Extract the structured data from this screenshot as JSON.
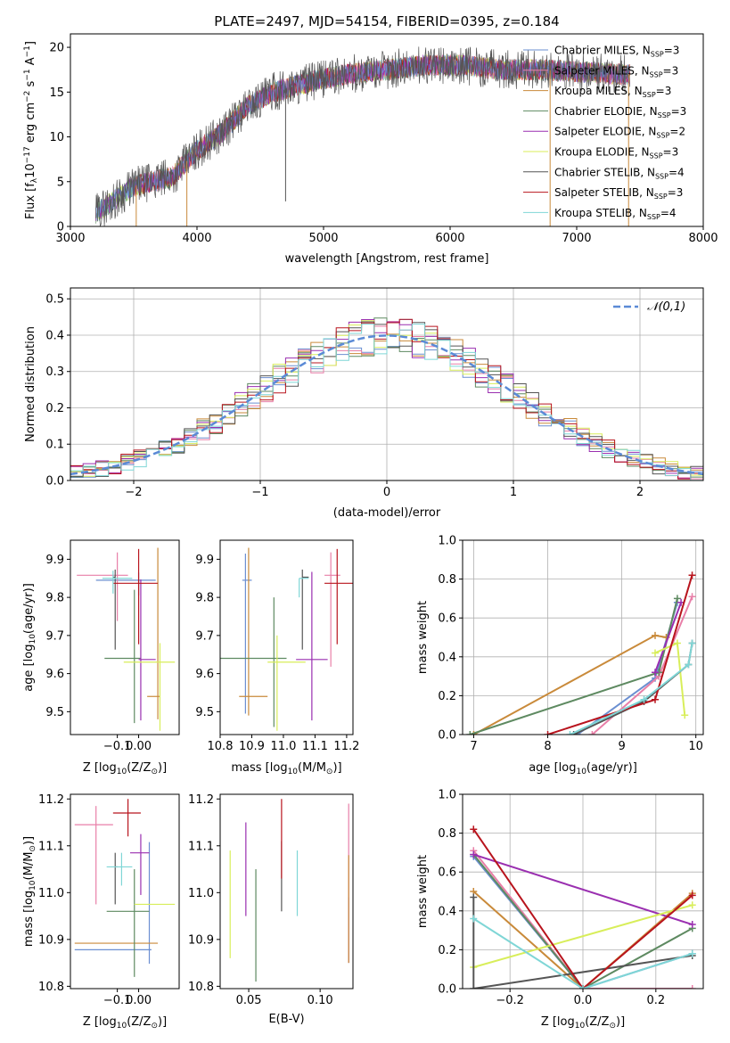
{
  "figure": {
    "title": "PLATE=2497, MJD=54154, FIBERID=0395, z=0.184"
  },
  "models": [
    {
      "name": "Chabrier MILES",
      "nssp": "3",
      "color": "#6b8fd1"
    },
    {
      "name": "Salpeter MILES",
      "nssp": "3",
      "color": "#e87fa8"
    },
    {
      "name": "Kroupa MILES",
      "nssp": "3",
      "color": "#c98a3a"
    },
    {
      "name": "Chabrier ELODIE",
      "nssp": "3",
      "color": "#5e8a61"
    },
    {
      "name": "Salpeter ELODIE",
      "nssp": "2",
      "color": "#9a2fb0"
    },
    {
      "name": "Kroupa ELODIE",
      "nssp": "3",
      "color": "#d8ee5a"
    },
    {
      "name": "Chabrier STELIB",
      "nssp": "4",
      "color": "#555555"
    },
    {
      "name": "Salpeter STELIB",
      "nssp": "3",
      "color": "#b8141d"
    },
    {
      "name": "Kroupa STELIB",
      "nssp": "4",
      "color": "#7fd6d6"
    }
  ],
  "chart_data": [
    {
      "id": "spectrum",
      "type": "line",
      "xlabel": "wavelength [Angstrom, rest frame]",
      "ylabel_parts": [
        "Flux [f",
        "λ",
        "10",
        "−17",
        " erg cm",
        "−2",
        " s",
        "−1",
        " A",
        "−1",
        "]"
      ],
      "xlim": [
        3000,
        8000
      ],
      "ylim": [
        0,
        21.5
      ],
      "xticks": [
        3000,
        4000,
        5000,
        6000,
        7000,
        8000
      ],
      "yticks": [
        0,
        5,
        10,
        15,
        20
      ],
      "envelope": {
        "x": [
          3200,
          3500,
          3800,
          4000,
          4200,
          4400,
          4600,
          4800,
          5000,
          5200,
          5500,
          5800,
          6100,
          6400,
          6700,
          7000,
          7300,
          7420
        ],
        "y": [
          1.5,
          4.5,
          5.5,
          8.5,
          10.5,
          13.5,
          15.0,
          15.8,
          16.5,
          17.0,
          17.5,
          18.0,
          18.0,
          17.5,
          17.5,
          17.3,
          17.0,
          17.0
        ]
      }
    },
    {
      "id": "residuals",
      "type": "histogram",
      "xlabel": "(data-model)/error",
      "ylabel": "Normed distribution",
      "xlim": [
        -2.5,
        2.5
      ],
      "ylim": [
        0,
        0.53
      ],
      "xticks": [
        -2,
        -1,
        0,
        1,
        2
      ],
      "yticks": [
        0.0,
        0.1,
        0.2,
        0.3,
        0.4,
        0.5
      ],
      "legend": "𝒩(0,1)",
      "reference_curve": {
        "name": "𝒩(0,1)",
        "mu": 0,
        "sigma": 1,
        "color": "#5b8ad6"
      },
      "bins": [
        -2.5,
        2.5,
        50
      ]
    },
    {
      "id": "age-vs-Z",
      "type": "errorbar",
      "xlabel_parts": [
        "Z [log",
        "10",
        "(Z/Z",
        "⊙",
        ")]"
      ],
      "ylabel_parts": [
        "age  [log",
        "10",
        "(age/yr)]"
      ],
      "xlim": [
        -0.32,
        0.19
      ],
      "ylim": [
        9.44,
        9.95
      ],
      "xticks": [
        -0.1,
        0.0
      ],
      "yticks": [
        9.5,
        9.6,
        9.7,
        9.8,
        9.9
      ],
      "points": [
        {
          "model": "Chabrier MILES",
          "x": 0.0,
          "xerr": [
            0.2,
            0.08
          ],
          "y": 9.845,
          "yerr": [
            0.04,
            0.02
          ]
        },
        {
          "model": "Salpeter MILES",
          "x": -0.1,
          "xerr": [
            0.19,
            0.05
          ],
          "y": 9.858,
          "yerr": [
            0.12,
            0.06
          ]
        },
        {
          "model": "Kroupa MILES",
          "x": 0.09,
          "xerr": [
            0.05,
            0.01
          ],
          "y": 9.54,
          "yerr": [
            0.06,
            0.39
          ]
        },
        {
          "model": "Chabrier ELODIE",
          "x": -0.02,
          "xerr": [
            0.14,
            0.03
          ],
          "y": 9.64,
          "yerr": [
            0.17,
            0.18
          ]
        },
        {
          "model": "Salpeter ELODIE",
          "x": 0.01,
          "xerr": [
            0.01,
            0.07
          ],
          "y": 9.637,
          "yerr": [
            0.16,
            0.21
          ]
        },
        {
          "model": "Kroupa ELODIE",
          "x": 0.1,
          "xerr": [
            0.17,
            0.07
          ],
          "y": 9.63,
          "yerr": [
            0.18,
            0.05
          ]
        },
        {
          "model": "Chabrier STELIB",
          "x": -0.11,
          "xerr": [
            0.01,
            0.0
          ],
          "y": 9.853,
          "yerr": [
            0.19,
            0.02
          ]
        },
        {
          "model": "Salpeter STELIB",
          "x": 0.0,
          "xerr": [
            0.12,
            0.09
          ],
          "y": 9.837,
          "yerr": [
            0.16,
            0.09
          ]
        },
        {
          "model": "Kroupa STELIB",
          "x": -0.12,
          "xerr": [
            0.05,
            0.09
          ],
          "y": 9.85,
          "yerr": [
            0.04,
            0.02
          ]
        }
      ]
    },
    {
      "id": "age-vs-mass",
      "type": "errorbar",
      "xlabel_parts": [
        "mass [log",
        "10",
        "(M/M",
        "⊙",
        ")]"
      ],
      "ylim": [
        9.44,
        9.95
      ],
      "xlim": [
        10.8,
        11.22
      ],
      "xticks": [
        10.8,
        10.9,
        11.0,
        11.1,
        11.2
      ],
      "yticks": [
        9.5,
        9.6,
        9.7,
        9.8,
        9.9
      ],
      "points": [
        {
          "model": "Chabrier MILES",
          "x": 10.88,
          "xerr": [
            0.01,
            0.02
          ],
          "y": 9.845,
          "yerr": [
            0.35,
            0.07
          ]
        },
        {
          "model": "Salpeter MILES",
          "x": 11.15,
          "xerr": [
            0.02,
            0.03
          ],
          "y": 9.858,
          "yerr": [
            0.24,
            0.06
          ]
        },
        {
          "model": "Kroupa MILES",
          "x": 10.89,
          "xerr": [
            0.03,
            0.06
          ],
          "y": 9.54,
          "yerr": [
            0.05,
            0.39
          ]
        },
        {
          "model": "Chabrier ELODIE",
          "x": 10.97,
          "xerr": [
            0.17,
            0.04
          ],
          "y": 9.64,
          "yerr": [
            0.18,
            0.16
          ]
        },
        {
          "model": "Salpeter ELODIE",
          "x": 11.09,
          "xerr": [
            0.05,
            0.05
          ],
          "y": 9.637,
          "yerr": [
            0.16,
            0.23
          ]
        },
        {
          "model": "Kroupa ELODIE",
          "x": 10.98,
          "xerr": [
            0.03,
            0.09
          ],
          "y": 9.63,
          "yerr": [
            0.18,
            0.07
          ]
        },
        {
          "model": "Chabrier STELIB",
          "x": 11.06,
          "xerr": [
            0.0,
            0.02
          ],
          "y": 9.853,
          "yerr": [
            0.19,
            0.02
          ]
        },
        {
          "model": "Salpeter STELIB",
          "x": 11.17,
          "xerr": [
            0.04,
            0.05
          ],
          "y": 9.837,
          "yerr": [
            0.16,
            0.09
          ]
        },
        {
          "model": "Kroupa STELIB",
          "x": 11.05,
          "xerr": [
            0.0,
            0.03
          ],
          "y": 9.85,
          "yerr": [
            0.05,
            0.0
          ]
        }
      ]
    },
    {
      "id": "weight-vs-age",
      "type": "line",
      "xlabel_parts": [
        "age  [log",
        "10",
        "(age/yr)]"
      ],
      "ylabel": "mass weight",
      "xlim": [
        6.85,
        10.1
      ],
      "ylim": [
        0,
        1
      ],
      "xticks": [
        7,
        8,
        9,
        10
      ],
      "yticks": [
        0.0,
        0.2,
        0.4,
        0.6,
        0.8,
        1.0
      ],
      "series": [
        {
          "model": "Chabrier MILES",
          "x": [
            8.4,
            9.45,
            9.75
          ],
          "y": [
            0.0,
            0.29,
            0.68
          ]
        },
        {
          "model": "Salpeter MILES",
          "x": [
            8.6,
            9.5,
            9.95
          ],
          "y": [
            0.0,
            0.3,
            0.71
          ]
        },
        {
          "model": "Kroupa MILES",
          "x": [
            7.0,
            9.45,
            9.6
          ],
          "y": [
            0.0,
            0.51,
            0.5
          ]
        },
        {
          "model": "Chabrier ELODIE",
          "x": [
            6.95,
            9.5,
            9.75
          ],
          "y": [
            0.0,
            0.32,
            0.7
          ]
        },
        {
          "model": "Salpeter ELODIE",
          "x": [
            9.45,
            9.8
          ],
          "y": [
            0.32,
            0.68
          ]
        },
        {
          "model": "Kroupa ELODIE",
          "x": [
            9.45,
            9.75,
            9.85
          ],
          "y": [
            0.42,
            0.47,
            0.1
          ]
        },
        {
          "model": "Chabrier STELIB",
          "x": [
            8.35,
            9.3,
            9.9,
            9.95
          ],
          "y": [
            0.0,
            0.17,
            0.36,
            0.47
          ]
        },
        {
          "model": "Salpeter STELIB",
          "x": [
            8.0,
            9.45,
            9.95
          ],
          "y": [
            0.0,
            0.18,
            0.82
          ]
        },
        {
          "model": "Kroupa STELIB",
          "x": [
            8.3,
            9.3,
            9.9,
            9.95
          ],
          "y": [
            0.0,
            0.18,
            0.36,
            0.47
          ]
        }
      ]
    },
    {
      "id": "mass-vs-Z",
      "type": "errorbar",
      "xlabel_parts": [
        "Z [log",
        "10",
        "(Z/Z",
        "⊙",
        ")]"
      ],
      "ylabel_parts": [
        "mass [log",
        "10",
        "(M/M",
        "⊙",
        ")]"
      ],
      "xlim": [
        -0.32,
        0.19
      ],
      "ylim": [
        10.795,
        11.21
      ],
      "xticks": [
        -0.1,
        0.0
      ],
      "yticks": [
        10.8,
        10.9,
        11.0,
        11.1,
        11.2
      ],
      "points": [
        {
          "model": "Chabrier MILES",
          "x": 0.05,
          "xerr": [
            0.35,
            0.01
          ],
          "y": 10.878,
          "yerr": [
            0.03,
            0.23
          ]
        },
        {
          "model": "Salpeter MILES",
          "x": -0.2,
          "xerr": [
            0.1,
            0.08
          ],
          "y": 11.145,
          "yerr": [
            0.17,
            0.04
          ]
        },
        {
          "model": "Kroupa MILES",
          "x": 0.09,
          "xerr": [
            0.39,
            0.0
          ],
          "y": 10.892,
          "yerr": [
            0.0,
            0.0
          ]
        },
        {
          "model": "Chabrier ELODIE",
          "x": -0.02,
          "xerr": [
            0.13,
            0.07
          ],
          "y": 10.96,
          "yerr": [
            0.14,
            0.09
          ]
        },
        {
          "model": "Salpeter ELODIE",
          "x": 0.01,
          "xerr": [
            0.05,
            0.04
          ],
          "y": 11.085,
          "yerr": [
            0.09,
            0.04
          ]
        },
        {
          "model": "Kroupa ELODIE",
          "x": 0.1,
          "xerr": [
            0.12,
            0.07
          ],
          "y": 10.975,
          "yerr": [
            0.0,
            0.0
          ]
        },
        {
          "model": "Chabrier STELIB",
          "x": -0.11,
          "xerr": [
            0.0,
            0.01
          ],
          "y": 11.055,
          "yerr": [
            0.08,
            0.03
          ]
        },
        {
          "model": "Salpeter STELIB",
          "x": -0.05,
          "xerr": [
            0.07,
            0.06
          ],
          "y": 11.17,
          "yerr": [
            0.05,
            0.03
          ]
        },
        {
          "model": "Kroupa STELIB",
          "x": -0.08,
          "xerr": [
            0.07,
            0.05
          ],
          "y": 11.055,
          "yerr": [
            0.04,
            0.03
          ]
        }
      ]
    },
    {
      "id": "mass-vs-EBV",
      "type": "errorbar",
      "xlabel": "E(B-V)",
      "xlim": [
        0.03,
        0.123
      ],
      "ylim": [
        10.795,
        11.21
      ],
      "xticks": [
        0.05,
        0.1
      ],
      "yticks": [
        10.8,
        10.9,
        11.0,
        11.1,
        11.2
      ],
      "points": [
        {
          "model": "Chabrier MILES",
          "x": 0.12,
          "y": 10.95,
          "yerr": [
            0.1,
            0.04
          ]
        },
        {
          "model": "Salpeter MILES",
          "x": 0.12,
          "y": 11.0,
          "yerr": [
            0.15,
            0.19
          ]
        },
        {
          "model": "Kroupa MILES",
          "x": 0.12,
          "y": 10.95,
          "yerr": [
            0.1,
            0.13
          ]
        },
        {
          "model": "Chabrier ELODIE",
          "x": 0.055,
          "y": 10.9,
          "yerr": [
            0.09,
            0.15
          ]
        },
        {
          "model": "Salpeter ELODIE",
          "x": 0.048,
          "y": 11.05,
          "yerr": [
            0.1,
            0.1
          ]
        },
        {
          "model": "Kroupa ELODIE",
          "x": 0.037,
          "y": 10.97,
          "yerr": [
            0.11,
            0.12
          ]
        },
        {
          "model": "Chabrier STELIB",
          "x": 0.073,
          "y": 11.05,
          "yerr": [
            0.09,
            0.06
          ]
        },
        {
          "model": "Salpeter STELIB",
          "x": 0.073,
          "y": 11.1,
          "yerr": [
            0.07,
            0.1
          ]
        },
        {
          "model": "Kroupa STELIB",
          "x": 0.084,
          "y": 11.05,
          "yerr": [
            0.1,
            0.04
          ]
        }
      ]
    },
    {
      "id": "weight-vs-Z",
      "type": "line",
      "xlabel_parts": [
        "Z [log",
        "10",
        "(Z/Z",
        "⊙",
        ")]"
      ],
      "ylabel": "mass weight",
      "xlim": [
        -0.33,
        0.33
      ],
      "ylim": [
        0,
        1
      ],
      "xticks": [
        -0.2,
        0.0,
        0.2
      ],
      "yticks": [
        0.0,
        0.2,
        0.4,
        0.6,
        0.8,
        1.0
      ],
      "series": [
        {
          "model": "Chabrier MILES",
          "x": [
            -0.3,
            0.0,
            0.3
          ],
          "y": [
            0.68,
            0.0,
            0.18
          ]
        },
        {
          "model": "Salpeter MILES",
          "x": [
            -0.3,
            0.0,
            0.3
          ],
          "y": [
            0.71,
            0.0,
            0.0
          ]
        },
        {
          "model": "Kroupa MILES",
          "x": [
            -0.3,
            0.0,
            0.3
          ],
          "y": [
            0.5,
            0.0,
            0.49
          ]
        },
        {
          "model": "Chabrier ELODIE",
          "x": [
            -0.3,
            0.0,
            0.3
          ],
          "y": [
            0.69,
            0.0,
            0.31
          ]
        },
        {
          "model": "Salpeter ELODIE",
          "x": [
            -0.3,
            0.3
          ],
          "y": [
            0.69,
            0.33
          ]
        },
        {
          "model": "Kroupa ELODIE",
          "x": [
            -0.3,
            0.3
          ],
          "y": [
            0.11,
            0.43
          ]
        },
        {
          "model": "Chabrier STELIB",
          "x": [
            -0.3,
            -0.3,
            0.3
          ],
          "y": [
            0.47,
            0.0,
            0.17
          ]
        },
        {
          "model": "Salpeter STELIB",
          "x": [
            -0.3,
            0.0,
            0.3
          ],
          "y": [
            0.82,
            0.0,
            0.48
          ]
        },
        {
          "model": "Kroupa STELIB",
          "x": [
            -0.3,
            0.0,
            0.3
          ],
          "y": [
            0.36,
            0.0,
            0.18
          ]
        }
      ]
    }
  ]
}
